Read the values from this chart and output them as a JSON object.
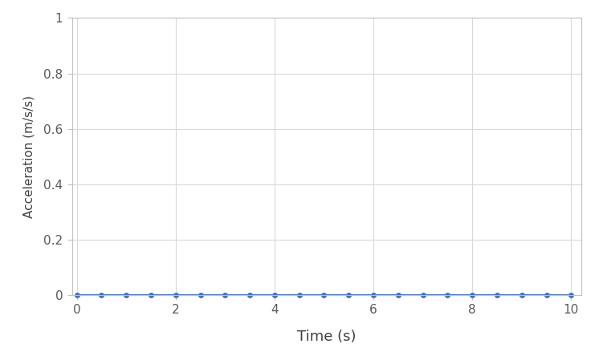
{
  "x_values": [
    0.0,
    0.5,
    1.0,
    1.5,
    2.0,
    2.5,
    3.0,
    3.5,
    4.0,
    4.5,
    5.0,
    5.5,
    6.0,
    6.5,
    7.0,
    7.5,
    8.0,
    8.5,
    9.0,
    9.5,
    10.0
  ],
  "y_values": [
    0.0,
    0.0,
    0.0,
    0.0,
    0.0,
    0.0,
    0.0,
    0.0,
    0.0,
    0.0,
    0.0,
    0.0,
    0.0,
    0.0,
    0.0,
    0.0,
    0.0,
    0.0,
    0.0,
    0.0,
    0.0
  ],
  "line_color": "#4472C4",
  "marker_color": "#4472C4",
  "marker_style": "o",
  "marker_size": 4,
  "line_width": 1.5,
  "xlabel": "Time (s)",
  "ylabel": "Acceleration (m/s/s)",
  "xlabel_fontsize": 13,
  "ylabel_fontsize": 11,
  "xlim": [
    -0.1,
    10.2
  ],
  "ylim": [
    0,
    1.0
  ],
  "xticks": [
    0,
    2,
    4,
    6,
    8,
    10
  ],
  "yticks": [
    0,
    0.2,
    0.4,
    0.6,
    0.8,
    1.0
  ],
  "ytick_labels": [
    "0",
    "0.2",
    "0.4",
    "0.6",
    "0.8",
    "1"
  ],
  "grid_color": "#D9D9D9",
  "plot_bg_color": "#FFFFFF",
  "tick_fontsize": 11,
  "figure_bg_color": "#FFFFFF",
  "spine_color": "#C0C0C0",
  "tick_color": "#808080"
}
